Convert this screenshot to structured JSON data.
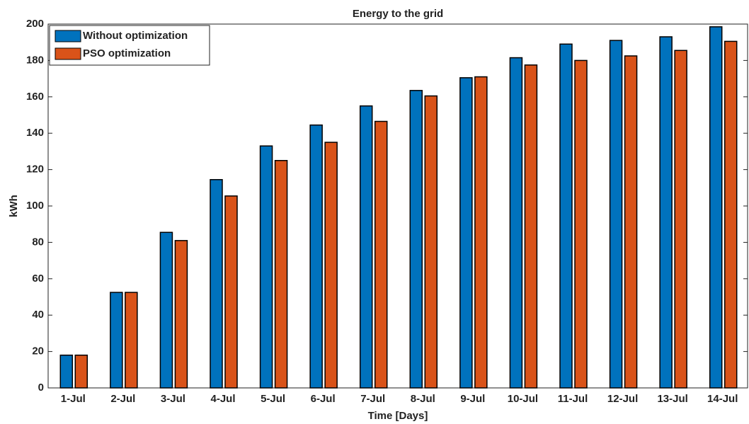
{
  "chart_data": {
    "type": "bar",
    "title": "Energy to the grid",
    "x_label": "Time [Days]",
    "y_label": "kWh",
    "categories": [
      "1-Jul",
      "2-Jul",
      "3-Jul",
      "4-Jul",
      "5-Jul",
      "6-Jul",
      "7-Jul",
      "8-Jul",
      "9-Jul",
      "10-Jul",
      "11-Jul",
      "12-Jul",
      "13-Jul",
      "14-Jul"
    ],
    "series": [
      {
        "name": "Without optimization",
        "color": "#0072bd",
        "values": [
          18,
          52.5,
          85.5,
          114.5,
          133,
          144.5,
          155,
          163.5,
          170.5,
          181.5,
          189,
          191,
          193,
          198.5
        ]
      },
      {
        "name": "PSO optimization",
        "color": "#d95319",
        "values": [
          18,
          52.5,
          81,
          105.5,
          125,
          135,
          146.5,
          160.5,
          171,
          177.5,
          180,
          182.5,
          185.5,
          190.5
        ]
      }
    ],
    "ylim": [
      0,
      200
    ],
    "yticks": [
      0,
      20,
      40,
      60,
      80,
      100,
      120,
      140,
      160,
      180,
      200
    ],
    "legend": "upper left"
  }
}
